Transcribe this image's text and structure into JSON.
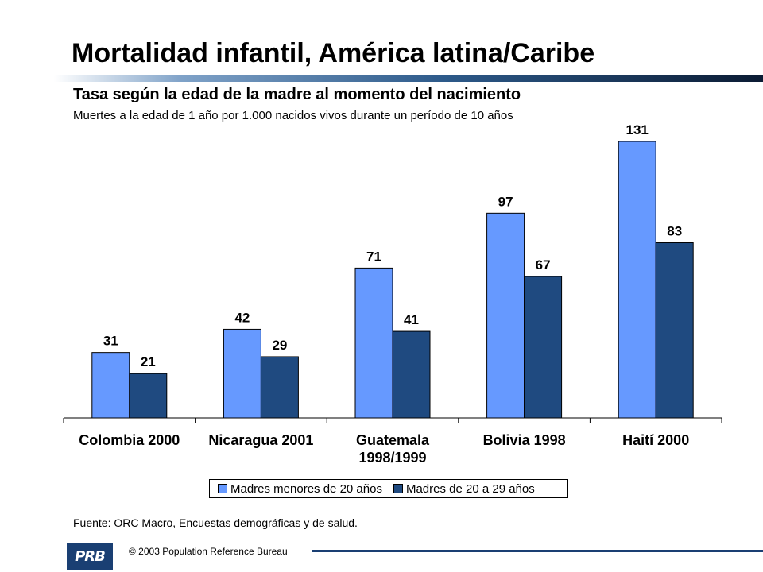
{
  "header": {
    "title": "Mortalidad infantil, América latina/Caribe",
    "subtitle": "Tasa según la edad de la madre al momento del nacimiento",
    "subsubtitle": "Muertes a la edad de 1 año por 1.000 nacidos vivos durante un período de 10 años"
  },
  "colors": {
    "series1": "#6699ff",
    "series2": "#1f4a80",
    "accent": "#1a3f73"
  },
  "chart_data": {
    "type": "bar",
    "categories": [
      [
        "Colombia 2000"
      ],
      [
        "Nicaragua 2001"
      ],
      [
        "Guatemala",
        "1998/1999"
      ],
      [
        "Bolivia 1998"
      ],
      [
        "Haití 2000"
      ]
    ],
    "series": [
      {
        "name": "Madres menores de 20 años",
        "values": [
          31,
          42,
          71,
          97,
          131
        ]
      },
      {
        "name": "Madres de 20 a 29 años",
        "values": [
          21,
          29,
          41,
          67,
          83
        ]
      }
    ],
    "ylim": [
      0,
      131
    ],
    "grid": false,
    "legend_position": "bottom"
  },
  "legend": {
    "item1": "Madres menores de 20 años",
    "item2": "Madres de 20 a 29 años"
  },
  "footer": {
    "source": "Fuente: ORC Macro, Encuestas demográficas y de salud.",
    "logo_text": "PRB",
    "copyright": "© 2003 Population Reference Bureau"
  }
}
